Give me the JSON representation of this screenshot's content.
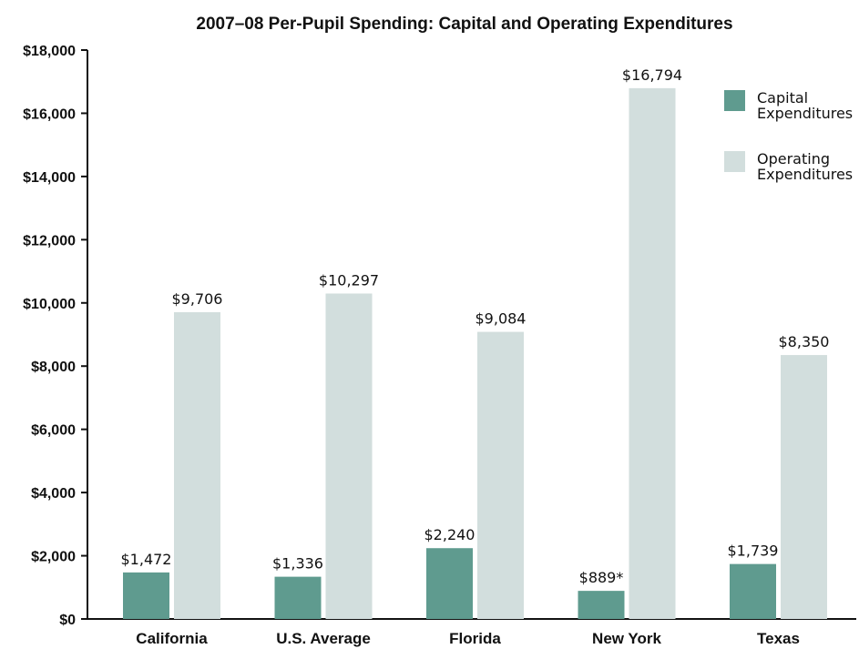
{
  "chart_data": {
    "type": "bar",
    "title": "2007–08 Per-Pupil Spending: Capital and Operating Expenditures",
    "xlabel": "",
    "ylabel": "",
    "ylim": [
      0,
      18000
    ],
    "yticks": [
      0,
      2000,
      4000,
      6000,
      8000,
      10000,
      12000,
      14000,
      16000,
      18000
    ],
    "ytick_labels": [
      "$0",
      "$2,000",
      "$4,000",
      "$6,000",
      "$8,000",
      "$10,000",
      "$12,000",
      "$14,000",
      "$16,000",
      "$18,000"
    ],
    "categories": [
      "California",
      "U.S. Average",
      "Florida",
      "New York",
      "Texas"
    ],
    "series": [
      {
        "name": "Capital Expenditures",
        "legend_lines": [
          "Capital",
          "Expenditures"
        ],
        "color": "#5f9b8f",
        "values": [
          1472,
          1336,
          2240,
          889,
          1739
        ],
        "labels": [
          "$1,472",
          "$1,336",
          "$2,240",
          "$889*",
          "$1,739"
        ]
      },
      {
        "name": "Operating Expenditures",
        "legend_lines": [
          "Operating",
          "Expenditures"
        ],
        "color": "#d2dedd",
        "values": [
          9706,
          10297,
          9084,
          16794,
          8350
        ],
        "labels": [
          "$9,706",
          "$10,297",
          "$9,084",
          "$16,794",
          "$8,350"
        ]
      }
    ],
    "legend_position": "top-right",
    "grid": false,
    "axis_color": "#111111"
  }
}
